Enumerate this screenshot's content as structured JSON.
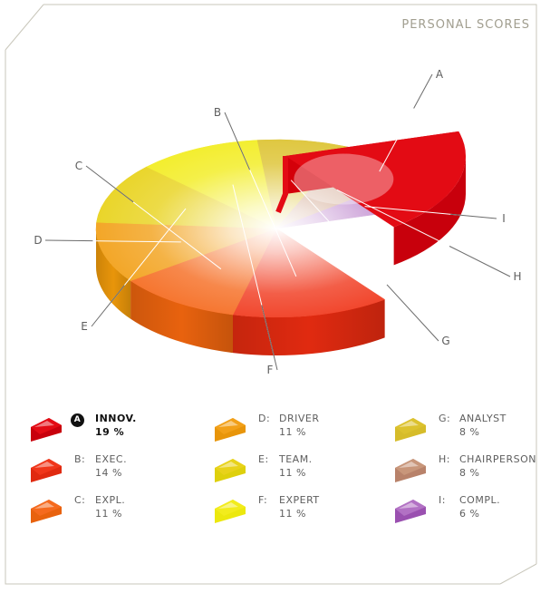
{
  "panel_title": "PERSONAL SCORES",
  "chart_data": {
    "type": "pie",
    "title": "PERSONAL SCORES",
    "exploded": "A",
    "slices": [
      {
        "letter": "A",
        "name": "INNOV.",
        "value": 19,
        "value_text": "19 %",
        "color": "#e30b14",
        "side_color": "#c8000c"
      },
      {
        "letter": "B",
        "name": "EXEC.",
        "value": 14,
        "value_text": "14 %",
        "color": "#f0361a",
        "side_color": "#e02a10"
      },
      {
        "letter": "C",
        "name": "EXPL.",
        "value": 11,
        "value_text": "11 %",
        "color": "#f56a1e",
        "side_color": "#e8620e"
      },
      {
        "letter": "D",
        "name": "DRIVER",
        "value": 11,
        "value_text": "11 %",
        "color": "#f2a018",
        "side_color": "#e8950a"
      },
      {
        "letter": "E",
        "name": "TEAM.",
        "value": 11,
        "value_text": "11 %",
        "color": "#e8d21a",
        "side_color": "#ded00c"
      },
      {
        "letter": "F",
        "name": "EXPERT",
        "value": 11,
        "value_text": "11 %",
        "color": "#f2ec1c",
        "side_color": "#ece80e"
      },
      {
        "letter": "G",
        "name": "ANALYST",
        "value": 8,
        "value_text": "8 %",
        "color": "#dcc22e",
        "side_color": "#d6bc2a"
      },
      {
        "letter": "H",
        "name": "CHAIRPERSON",
        "value": 8,
        "value_text": "8 %",
        "color": "#c8967a",
        "side_color": "#b8826a"
      },
      {
        "letter": "I",
        "name": "COMPL.",
        "value": 6,
        "value_text": "6 %",
        "color": "#b271c4",
        "side_color": "#9a50b0"
      }
    ]
  }
}
